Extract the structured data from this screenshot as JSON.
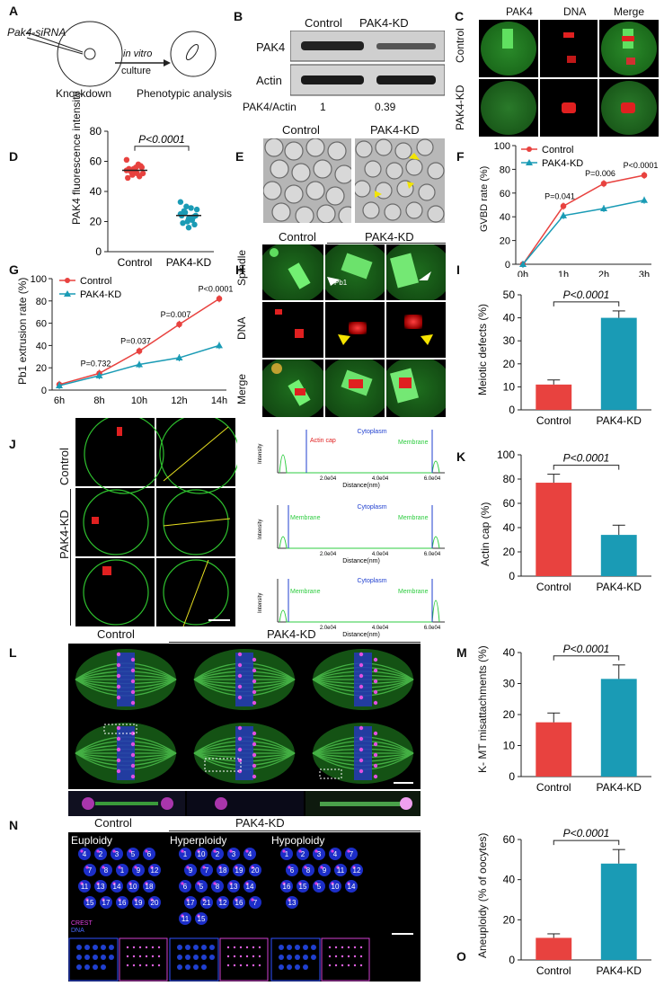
{
  "panels": {
    "A": {
      "label": "A",
      "sirna": "Pak4-siRNA",
      "arrow_top": "in vitro",
      "arrow_bottom": "culture",
      "left": "Knockdown",
      "right": "Phenotypic analysis"
    },
    "B": {
      "label": "B",
      "control": "Control",
      "kd": "PAK4-KD",
      "row1": "PAK4",
      "row2": "Actin",
      "ratio_label": "PAK4/Actin",
      "ratio_control": "1",
      "ratio_kd": "0.39"
    },
    "C": {
      "label": "C",
      "col1": "PAK4",
      "col2": "DNA",
      "col3": "Merge",
      "row1": "Control",
      "row2": "PAK4-KD"
    },
    "D": {
      "label": "D",
      "ylabel": "PAK4 fluorescence intensity",
      "pvalue": "P<0.0001",
      "cats": [
        "Control",
        "PAK4-KD"
      ],
      "yticks": [
        "0",
        "20",
        "40",
        "60",
        "80"
      ]
    },
    "E": {
      "label": "E",
      "control": "Control",
      "kd": "PAK4-KD"
    },
    "F": {
      "label": "F",
      "ylabel": "GVBD  rate (%)",
      "legend1": "Control",
      "legend2": "PAK4-KD",
      "p1": "P=0.041",
      "p2": "P=0.006",
      "p3": "P<0.0001",
      "xticks": [
        "0h",
        "1h",
        "2h",
        "3h"
      ],
      "yticks": [
        "0",
        "20",
        "40",
        "60",
        "80",
        "100"
      ]
    },
    "G": {
      "label": "G",
      "ylabel": "Pb1 extrusion rate (%)",
      "legend1": "Control",
      "legend2": "PAK4-KD",
      "p1": "P=0.732",
      "p2": "P=0.037",
      "p3": "P=0.007",
      "p4": "P<0.0001",
      "xticks": [
        "6h",
        "8h",
        "10h",
        "12h",
        "14h"
      ],
      "yticks": [
        "0",
        "20",
        "40",
        "60",
        "80",
        "100"
      ]
    },
    "H": {
      "label": "H",
      "control": "Control",
      "kd": "PAK4-KD",
      "row1": "Spindle",
      "row2": "DNA",
      "row3": "Merge",
      "pb1": "Pb1"
    },
    "I": {
      "label": "I",
      "ylabel": "Meiotic defects (%)",
      "pvalue": "P<0.0001",
      "cats": [
        "Control",
        "PAK4-KD"
      ],
      "yticks": [
        "0",
        "10",
        "20",
        "30",
        "40",
        "50"
      ]
    },
    "J": {
      "label": "J",
      "row1": "Control",
      "row2": "PAK4-KD"
    },
    "profiles": {
      "ylabel": "Intensity",
      "xlabel": "Distance(nm)",
      "actin_cap": "Actin cap",
      "cytoplasm": "Cytoplasm",
      "membrane": "Membrane",
      "xticks": [
        "2.0e04",
        "4.0e04",
        "6.0e04"
      ]
    },
    "K": {
      "label": "K",
      "ylabel": "Actin cap (%)",
      "pvalue": "P<0.0001",
      "cats": [
        "Control",
        "PAK4-KD"
      ],
      "yticks": [
        "0",
        "20",
        "40",
        "60",
        "80",
        "100"
      ]
    },
    "L": {
      "label": "L",
      "control": "Control",
      "kd": "PAK4-KD"
    },
    "M": {
      "label": "M",
      "ylabel": "K- MT misattachments (%)",
      "pvalue": "P<0.0001",
      "cats": [
        "Control",
        "PAK4-KD"
      ],
      "yticks": [
        "0",
        "10",
        "20",
        "30",
        "40"
      ]
    },
    "N": {
      "label": "N",
      "control": "Control",
      "kd": "PAK4-KD",
      "euploidy": "Euploidy",
      "hyper": "Hyperploidy",
      "hypo": "Hypoploidy",
      "crest": "CREST",
      "dna": "DNA"
    },
    "O": {
      "label": "O",
      "ylabel": "Aneuploidy (% of oocytes)",
      "pvalue": "P<0.0001",
      "cats": [
        "Control",
        "PAK4-KD"
      ],
      "yticks": [
        "0",
        "20",
        "40",
        "60"
      ]
    }
  },
  "colors": {
    "control": "#e8423f",
    "kd": "#1a9bb5",
    "membrane": "#2ecc40",
    "cytoplasm": "#1f3fcf"
  },
  "chart_data": [
    {
      "type": "scatter",
      "panel": "D",
      "categories": [
        "Control",
        "PAK4-KD"
      ],
      "series": [
        {
          "name": "Control",
          "values": [
            54,
            53,
            52,
            55,
            56,
            51,
            57,
            53,
            50,
            54,
            58,
            55,
            52,
            49,
            56,
            61
          ]
        },
        {
          "name": "PAK4-KD",
          "values": [
            25,
            22,
            28,
            20,
            24,
            30,
            18,
            26,
            23,
            27,
            21,
            19,
            29,
            24,
            22,
            33,
            16
          ]
        }
      ],
      "means": [
        54,
        24
      ],
      "ylim": [
        0,
        80
      ]
    },
    {
      "type": "line",
      "panel": "F",
      "x": [
        "0h",
        "1h",
        "2h",
        "3h"
      ],
      "series": [
        {
          "name": "Control",
          "values": [
            0,
            49,
            68,
            75
          ]
        },
        {
          "name": "PAK4-KD",
          "values": [
            0,
            41,
            47,
            54
          ]
        }
      ],
      "ylim": [
        0,
        100
      ]
    },
    {
      "type": "line",
      "panel": "G",
      "x": [
        "6h",
        "8h",
        "10h",
        "12h",
        "14h"
      ],
      "series": [
        {
          "name": "Control",
          "values": [
            5,
            15,
            35,
            59,
            82
          ]
        },
        {
          "name": "PAK4-KD",
          "values": [
            4,
            13,
            23,
            29,
            40
          ]
        }
      ],
      "ylim": [
        0,
        100
      ]
    },
    {
      "type": "bar",
      "panel": "I",
      "categories": [
        "Control",
        "PAK4-KD"
      ],
      "values": [
        11,
        40
      ],
      "errors": [
        2,
        3
      ],
      "ylim": [
        0,
        50
      ]
    },
    {
      "type": "bar",
      "panel": "K",
      "categories": [
        "Control",
        "PAK4-KD"
      ],
      "values": [
        77,
        34
      ],
      "errors": [
        7,
        8
      ],
      "ylim": [
        0,
        100
      ]
    },
    {
      "type": "bar",
      "panel": "M",
      "categories": [
        "Control",
        "PAK4-KD"
      ],
      "values": [
        17.5,
        31.5
      ],
      "errors": [
        3,
        4.5
      ],
      "ylim": [
        0,
        40
      ]
    },
    {
      "type": "bar",
      "panel": "O",
      "categories": [
        "Control",
        "PAK4-KD"
      ],
      "values": [
        11,
        48
      ],
      "errors": [
        2,
        7
      ],
      "ylim": [
        0,
        60
      ]
    }
  ]
}
